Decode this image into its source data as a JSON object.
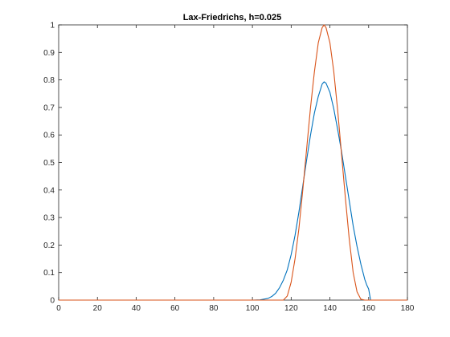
{
  "chart_data": {
    "type": "line",
    "title": "Lax-Friedrichs, h=0.025",
    "xlabel": "",
    "ylabel": "",
    "xlim": [
      0,
      180
    ],
    "ylim": [
      0,
      1
    ],
    "xticks": [
      0,
      20,
      40,
      60,
      80,
      100,
      120,
      140,
      160,
      180
    ],
    "yticks": [
      0,
      0.1,
      0.2,
      0.3,
      0.4,
      0.5,
      0.6,
      0.7,
      0.8,
      0.9,
      1
    ],
    "ytick_labels": [
      "0",
      "0.1",
      "0.2",
      "0.3",
      "0.4",
      "0.5",
      "0.6",
      "0.7",
      "0.8",
      "0.9",
      "1"
    ],
    "grid": false,
    "series": [
      {
        "color": "#0072BD",
        "x": [
          0,
          100,
          104,
          108,
          110,
          112,
          114,
          116,
          118,
          120,
          122,
          124,
          126,
          128,
          130,
          132,
          134,
          136,
          137,
          138,
          140,
          142,
          144,
          146,
          148,
          150,
          152,
          154,
          156,
          158,
          159,
          160,
          160.5,
          161,
          180
        ],
        "y": [
          0,
          0,
          0.001,
          0.006,
          0.013,
          0.025,
          0.045,
          0.073,
          0.11,
          0.165,
          0.235,
          0.32,
          0.415,
          0.51,
          0.6,
          0.68,
          0.74,
          0.785,
          0.793,
          0.788,
          0.755,
          0.695,
          0.62,
          0.54,
          0.45,
          0.36,
          0.27,
          0.195,
          0.13,
          0.075,
          0.055,
          0.04,
          0.02,
          0,
          0
        ]
      },
      {
        "color": "#D95319",
        "x": [
          0,
          116,
          118,
          120,
          122,
          124,
          126,
          128,
          130,
          132,
          134,
          136,
          137,
          138,
          140,
          142,
          144,
          146,
          148,
          150,
          152,
          154,
          156,
          158,
          180
        ],
        "y": [
          0,
          0,
          0.015,
          0.065,
          0.15,
          0.26,
          0.4,
          0.55,
          0.7,
          0.83,
          0.935,
          0.99,
          1.0,
          0.99,
          0.935,
          0.83,
          0.69,
          0.53,
          0.37,
          0.22,
          0.1,
          0.03,
          0.003,
          0,
          0
        ]
      }
    ]
  }
}
